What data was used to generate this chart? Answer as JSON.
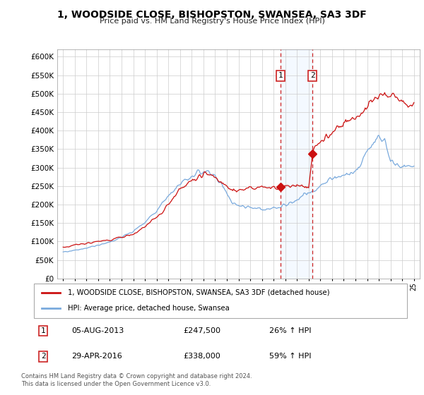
{
  "title": "1, WOODSIDE CLOSE, BISHOPSTON, SWANSEA, SA3 3DF",
  "subtitle": "Price paid vs. HM Land Registry's House Price Index (HPI)",
  "background_color": "#ffffff",
  "plot_bg_color": "#ffffff",
  "grid_color": "#cccccc",
  "hpi_line_color": "#7aaadd",
  "price_line_color": "#cc1111",
  "vline_color": "#cc2222",
  "shade_color": "#ddeeff",
  "sale1_date_num": 2013.59,
  "sale2_date_num": 2016.33,
  "sale1_price": 247500,
  "sale2_price": 338000,
  "legend_line1": "1, WOODSIDE CLOSE, BISHOPSTON, SWANSEA, SA3 3DF (detached house)",
  "legend_line2": "HPI: Average price, detached house, Swansea",
  "footer": "Contains HM Land Registry data © Crown copyright and database right 2024.\nThis data is licensed under the Open Government Licence v3.0.",
  "xmin": 1994.5,
  "xmax": 2025.5,
  "ymin": 0,
  "ymax": 620000,
  "yticks": [
    0,
    50000,
    100000,
    150000,
    200000,
    250000,
    300000,
    350000,
    400000,
    450000,
    500000,
    550000,
    600000
  ],
  "xticks": [
    1995,
    1996,
    1997,
    1998,
    1999,
    2000,
    2001,
    2002,
    2003,
    2004,
    2005,
    2006,
    2007,
    2008,
    2009,
    2010,
    2011,
    2012,
    2013,
    2014,
    2015,
    2016,
    2017,
    2018,
    2019,
    2020,
    2021,
    2022,
    2023,
    2024,
    2025
  ]
}
